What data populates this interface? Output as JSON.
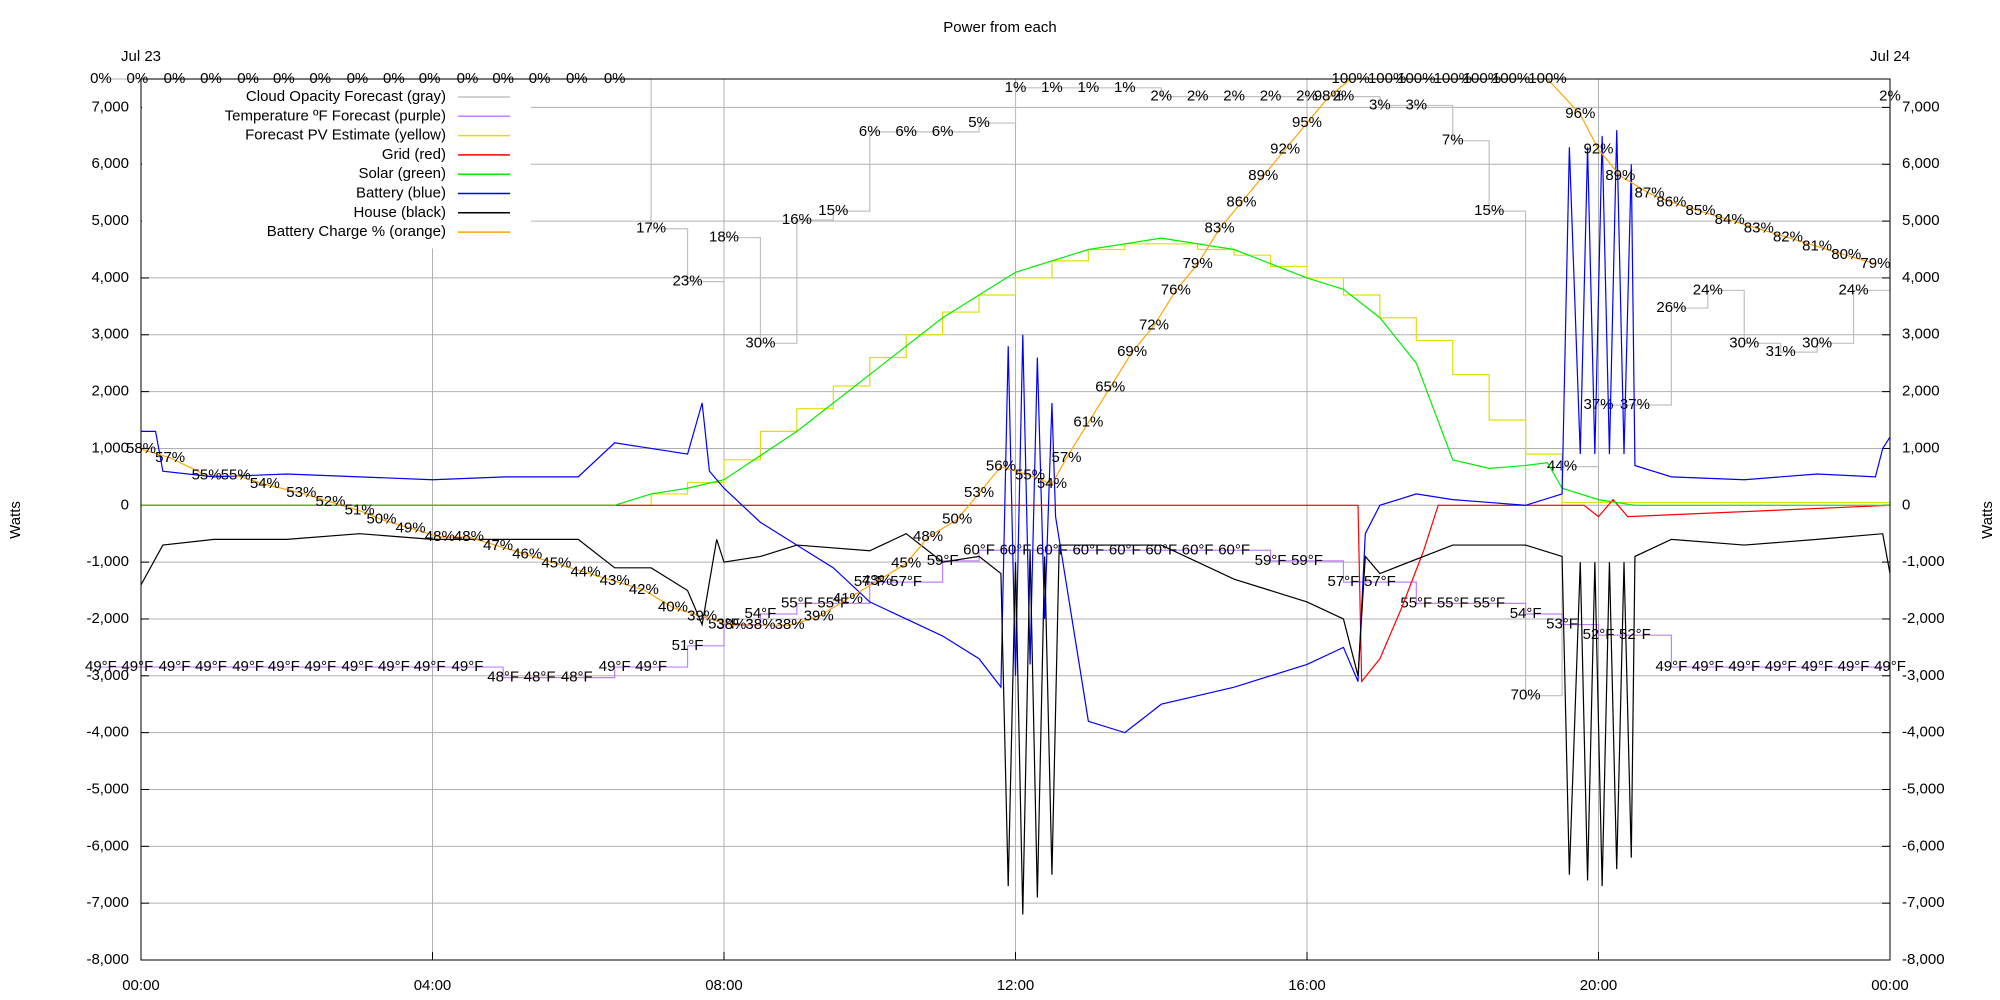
{
  "chart_data": {
    "type": "line",
    "title": "Power from each",
    "ylabel": "Watts",
    "y2label": "Watts",
    "xlim": [
      0,
      24
    ],
    "xticks": [
      {
        "value": 0,
        "label": "00:00"
      },
      {
        "value": 4,
        "label": "04:00"
      },
      {
        "value": 8,
        "label": "08:00"
      },
      {
        "value": 12,
        "label": "12:00"
      },
      {
        "value": 16,
        "label": "16:00"
      },
      {
        "value": 20,
        "label": "20:00"
      },
      {
        "value": 24,
        "label": "00:00"
      }
    ],
    "x2ticks": [
      {
        "value": 0,
        "label": "Jul 23"
      },
      {
        "value": 24,
        "label": "Jul 24"
      }
    ],
    "ylim": [
      -8000,
      7500
    ],
    "yticks": [
      {
        "value": -8000,
        "label": "-8,000"
      },
      {
        "value": -7000,
        "label": "-7,000"
      },
      {
        "value": -6000,
        "label": "-6,000"
      },
      {
        "value": -5000,
        "label": "-5,000"
      },
      {
        "value": -4000,
        "label": "-4,000"
      },
      {
        "value": -3000,
        "label": "-3,000"
      },
      {
        "value": -2000,
        "label": "-2,000"
      },
      {
        "value": -1000,
        "label": "-1,000"
      },
      0,
      {
        "value": 1000,
        "label": "1,000"
      },
      {
        "value": 2000,
        "label": "2,000"
      },
      {
        "value": 3000,
        "label": "3,000"
      },
      {
        "value": 4000,
        "label": "4,000"
      },
      {
        "value": 5000,
        "label": "5,000"
      },
      {
        "value": 6000,
        "label": "6,000"
      },
      {
        "value": 7000,
        "label": "7,000"
      }
    ],
    "grid": true,
    "legend": "top-left",
    "series": [
      {
        "name": "Cloud Opacity Forecast (gray)",
        "color": "#c0c0c0",
        "label_color": "#b0b0b0",
        "drawstyle": "steps",
        "x": [
          -0.55,
          -0.05,
          0.46,
          0.96,
          1.47,
          1.96,
          2.46,
          2.97,
          3.47,
          3.96,
          4.48,
          4.97,
          5.47,
          5.98,
          6.5,
          7.0,
          7.5,
          8.0,
          8.5,
          9.0,
          9.5,
          10.0,
          10.5,
          11.0,
          11.5,
          12.0,
          12.5,
          13.0,
          13.5,
          14.0,
          14.5,
          15.0,
          15.5,
          16.0,
          16.5,
          17.0,
          17.5,
          18.0,
          18.5,
          19.0,
          19.5,
          20.0,
          20.5,
          21.0,
          21.5,
          22.0,
          22.5,
          23.0,
          23.5,
          24.0
        ],
        "values": [
          0,
          0,
          0,
          0,
          0,
          0,
          0,
          0,
          0,
          0,
          0,
          0,
          0,
          0,
          0,
          17,
          23,
          18,
          30,
          16,
          15,
          6,
          6,
          6,
          5,
          1,
          1,
          1,
          1,
          2,
          2,
          2,
          2,
          2,
          2,
          3,
          3,
          7,
          15,
          70,
          44,
          37,
          37,
          26,
          24,
          30,
          31,
          30,
          24,
          2
        ],
        "value_labels": [
          "0%",
          "0%",
          "0%",
          "0%",
          "0%",
          "0%",
          "0%",
          "0%",
          "0%",
          "0%",
          "0%",
          "0%",
          "0%",
          "0%",
          "0%",
          "17%",
          "23%",
          "18%",
          "30%",
          "16%",
          "15%",
          "6%",
          "6%",
          "6%",
          "5%",
          "1%",
          "1%",
          "1%",
          "1%",
          "2%",
          "2%",
          "2%",
          "2%",
          "2%",
          "2%",
          "3%",
          "3%",
          "7%",
          "15%",
          "70%",
          "44%",
          "37%",
          "37%",
          "26%",
          "24%",
          "30%",
          "31%",
          "30%",
          "24%",
          "2%"
        ]
      },
      {
        "name": "Temperature ºF Forecast (purple)",
        "color": "#c080ff",
        "label_color": "#b67be8",
        "drawstyle": "steps",
        "x": [
          -0.55,
          -0.05,
          0.46,
          0.96,
          1.47,
          1.96,
          2.46,
          2.97,
          3.47,
          3.96,
          4.48,
          4.97,
          5.47,
          5.98,
          6.5,
          7.0,
          7.5,
          8.0,
          8.5,
          9.0,
          9.5,
          10.0,
          10.5,
          11.0,
          11.5,
          12.0,
          12.5,
          13.0,
          13.5,
          14.0,
          14.5,
          15.0,
          15.5,
          16.0,
          16.5,
          17.0,
          17.5,
          18.0,
          18.5,
          19.0,
          19.5,
          20.0,
          20.5,
          21.0,
          21.5,
          22.0,
          22.5,
          23.0,
          23.5,
          24.0
        ],
        "values": [
          49,
          49,
          49,
          49,
          49,
          49,
          49,
          49,
          49,
          49,
          49,
          48,
          48,
          48,
          49,
          49,
          51,
          53,
          54,
          55,
          55,
          57,
          57,
          59,
          60,
          60,
          60,
          60,
          60,
          60,
          60,
          60,
          59,
          59,
          57,
          57,
          55,
          55,
          55,
          54,
          53,
          52,
          52,
          49,
          49,
          49,
          49,
          49,
          49,
          49
        ],
        "value_labels": [
          "49°F",
          "49°F",
          "49°F",
          "49°F",
          "49°F",
          "49°F",
          "49°F",
          "49°F",
          "49°F",
          "49°F",
          "49°F",
          "48°F",
          "48°F",
          "48°F",
          "49°F",
          "49°F",
          "51°F",
          "53°F",
          "54°F",
          "55°F",
          "55°F",
          "57°F",
          "57°F",
          "59°F",
          "60°F",
          "60°F",
          "60°F",
          "60°F",
          "60°F",
          "60°F",
          "60°F",
          "60°F",
          "59°F",
          "59°F",
          "57°F",
          "57°F",
          "55°F",
          "55°F",
          "55°F",
          "54°F",
          "53°F",
          "52°F",
          "52°F",
          "49°F",
          "49°F",
          "49°F",
          "49°F",
          "49°F",
          "49°F",
          "49°F"
        ]
      },
      {
        "name": "Forecast PV Estimate (yellow)",
        "color": "#e0e000",
        "drawstyle": "steps",
        "x": [
          0,
          6.5,
          7,
          7.5,
          8,
          8.5,
          9,
          9.5,
          10,
          10.5,
          11,
          11.5,
          12,
          12.5,
          13,
          13.5,
          14,
          14.5,
          15,
          15.5,
          16,
          16.5,
          17,
          17.5,
          18,
          18.5,
          19,
          19.5,
          24
        ],
        "values": [
          0,
          0,
          200,
          400,
          800,
          1300,
          1700,
          2100,
          2600,
          3000,
          3400,
          3700,
          4000,
          4300,
          4500,
          4600,
          4600,
          4500,
          4400,
          4200,
          4000,
          3700,
          3300,
          2900,
          2300,
          1500,
          900,
          50,
          0
        ]
      },
      {
        "name": "Grid (red)",
        "color": "#ff0000",
        "x": [
          0,
          16.7,
          16.75,
          17,
          17.3,
          17.6,
          17.8,
          19.8,
          20,
          20.2,
          20.4,
          24
        ],
        "values": [
          0,
          0,
          -3100,
          -2700,
          -1800,
          -800,
          0,
          0,
          -200,
          100,
          -200,
          0
        ]
      },
      {
        "name": "Solar (green)",
        "color": "#00ee00",
        "x": [
          0,
          6.5,
          7,
          7.5,
          8,
          9,
          10,
          11,
          12,
          13,
          14,
          15,
          16,
          16.5,
          17,
          17.5,
          18,
          18.5,
          19,
          19.3,
          19.5,
          20,
          20.5,
          24
        ],
        "values": [
          0,
          0,
          200,
          300,
          450,
          1300,
          2300,
          3300,
          4100,
          4500,
          4700,
          4500,
          4000,
          3800,
          3300,
          2500,
          800,
          650,
          700,
          750,
          300,
          100,
          0,
          0
        ]
      },
      {
        "name": "Battery (blue)",
        "color": "#0000ff",
        "x": [
          0,
          0.2,
          0.3,
          1,
          2,
          3,
          4,
          5,
          6,
          6.5,
          7,
          7.5,
          7.7,
          7.8,
          8,
          8.5,
          9,
          9.5,
          10,
          10.5,
          11,
          11.5,
          11.8,
          11.9,
          12,
          12.1,
          12.2,
          12.3,
          12.4,
          12.5,
          12.55,
          13,
          13.5,
          14,
          15,
          16,
          16.5,
          16.7,
          16.8,
          17,
          17.5,
          18,
          18.5,
          19,
          19.5,
          19.6,
          19.75,
          19.85,
          19.95,
          20.05,
          20.15,
          20.25,
          20.35,
          20.45,
          20.5,
          21,
          22,
          23,
          23.8,
          23.9,
          24
        ],
        "values": [
          1300,
          1300,
          600,
          500,
          550,
          500,
          450,
          500,
          500,
          1100,
          1000,
          900,
          1800,
          600,
          300,
          -300,
          -700,
          -1100,
          -1700,
          -2000,
          -2300,
          -2700,
          -3200,
          2800,
          -3000,
          3000,
          -2800,
          2600,
          -2000,
          1800,
          -200,
          -3800,
          -4000,
          -3500,
          -3200,
          -2800,
          -2500,
          -3100,
          -500,
          0,
          200,
          100,
          50,
          0,
          200,
          6300,
          900,
          6300,
          900,
          6500,
          900,
          6600,
          900,
          6000,
          700,
          500,
          450,
          550,
          500,
          1000,
          1200
        ]
      },
      {
        "name": "House (black)",
        "color": "#000000",
        "x": [
          0,
          0.3,
          1,
          2,
          3,
          4,
          5,
          6,
          6.5,
          7,
          7.5,
          7.7,
          7.9,
          8,
          8.5,
          9,
          10,
          10.5,
          11,
          11.5,
          11.8,
          11.9,
          12,
          12.1,
          12.2,
          12.3,
          12.4,
          12.5,
          12.6,
          13,
          14,
          15,
          16,
          16.5,
          16.7,
          16.8,
          17,
          18,
          19,
          19.5,
          19.6,
          19.75,
          19.85,
          19.95,
          20.05,
          20.15,
          20.25,
          20.35,
          20.45,
          20.5,
          21,
          22,
          23,
          23.9,
          24
        ],
        "values": [
          -1400,
          -700,
          -600,
          -600,
          -500,
          -600,
          -600,
          -600,
          -1100,
          -1100,
          -1500,
          -2100,
          -600,
          -1000,
          -900,
          -700,
          -800,
          -500,
          -1000,
          -900,
          -1200,
          -6700,
          -1000,
          -7200,
          -800,
          -6900,
          -900,
          -6500,
          -700,
          -700,
          -700,
          -1300,
          -1700,
          -2000,
          -3000,
          -900,
          -1200,
          -700,
          -700,
          -900,
          -6500,
          -1000,
          -6600,
          -1000,
          -6700,
          -1000,
          -6400,
          -1000,
          -6200,
          -900,
          -600,
          -700,
          -600,
          -500,
          -1200
        ]
      },
      {
        "name": "Battery Charge % (orange)",
        "color": "#ffa500",
        "label_color": "#8b4a00",
        "x": [
          0,
          0.4,
          0.9,
          1.3,
          1.7,
          2.2,
          2.6,
          3.0,
          3.3,
          3.7,
          4.1,
          4.5,
          4.9,
          5.3,
          5.7,
          6.1,
          6.5,
          6.9,
          7.3,
          7.7,
          8.1,
          8.5,
          8.9,
          9.3,
          9.7,
          10.1,
          10.5,
          10.8,
          11.2,
          11.5,
          11.8,
          12.2,
          12.5,
          12.7,
          13.0,
          13.3,
          13.6,
          13.9,
          14.2,
          14.5,
          14.8,
          15.1,
          15.4,
          15.7,
          16.0,
          16.3,
          16.6,
          17.1,
          17.5,
          18.0,
          18.4,
          18.8,
          19.3,
          19.75,
          20.0,
          20.3,
          20.7,
          21.0,
          21.4,
          21.8,
          22.2,
          22.6,
          23.0,
          23.4,
          23.8
        ],
        "values": [
          58,
          57,
          55,
          55,
          54,
          53,
          52,
          51,
          50,
          49,
          48,
          48,
          47,
          46,
          45,
          44,
          43,
          42,
          40,
          39,
          38,
          38,
          38,
          39,
          41,
          43,
          45,
          48,
          50,
          53,
          56,
          55,
          54,
          57,
          61,
          65,
          69,
          72,
          76,
          79,
          83,
          86,
          89,
          92,
          95,
          98,
          100,
          100,
          100,
          100,
          100,
          100,
          100,
          96,
          92,
          89,
          87,
          86,
          85,
          84,
          83,
          82,
          81,
          80,
          79
        ],
        "value_labels": [
          "58%",
          "57%",
          "55%",
          "55%",
          "54%",
          "53%",
          "52%",
          "51%",
          "50%",
          "49%",
          "48%",
          "48%",
          "47%",
          "46%",
          "45%",
          "44%",
          "43%",
          "42%",
          "40%",
          "39%",
          "38%",
          "38%",
          "38%",
          "39%",
          "41%",
          "43%",
          "45%",
          "48%",
          "50%",
          "53%",
          "56%",
          "55%",
          "54%",
          "57%",
          "61%",
          "65%",
          "69%",
          "72%",
          "76%",
          "79%",
          "83%",
          "86%",
          "89%",
          "92%",
          "95%",
          "98%",
          "100%",
          "100%",
          "100%",
          "100%",
          "100%",
          "100%",
          "100%",
          "96%",
          "92%",
          "89%",
          "87%",
          "86%",
          "85%",
          "84%",
          "83%",
          "82%",
          "81%",
          "80%",
          "79%"
        ]
      }
    ]
  }
}
